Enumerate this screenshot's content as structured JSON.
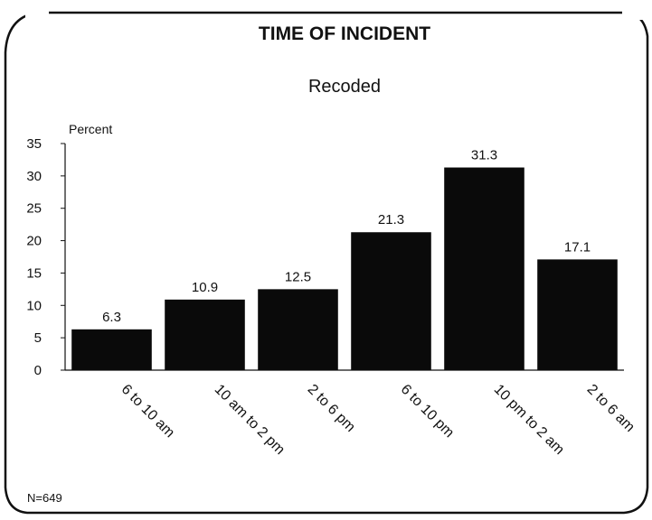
{
  "chart_data": {
    "type": "bar",
    "title": "TIME OF INCIDENT",
    "subtitle": "Recoded",
    "ylabel": "Percent",
    "xlabel": "",
    "categories": [
      "6 to 10 am",
      "10 am to 2 pm",
      "2 to 6 pm",
      "6 to 10 pm",
      "10 pm to 2 am",
      "2 to 6 am"
    ],
    "values": [
      6.3,
      10.9,
      12.5,
      21.3,
      31.3,
      17.1
    ],
    "data_labels": [
      "6.3",
      "10.9",
      "12.5",
      "21.3",
      "31.3",
      "17.1"
    ],
    "ylim": [
      0,
      35
    ],
    "yticks": [
      0,
      5,
      10,
      15,
      20,
      25,
      30,
      35
    ],
    "grid": false,
    "legend": "none",
    "note": "N=649",
    "colors": {
      "bar": "#0a0a0a",
      "text": "#111111",
      "frame": "#111111",
      "background": "#ffffff"
    }
  }
}
